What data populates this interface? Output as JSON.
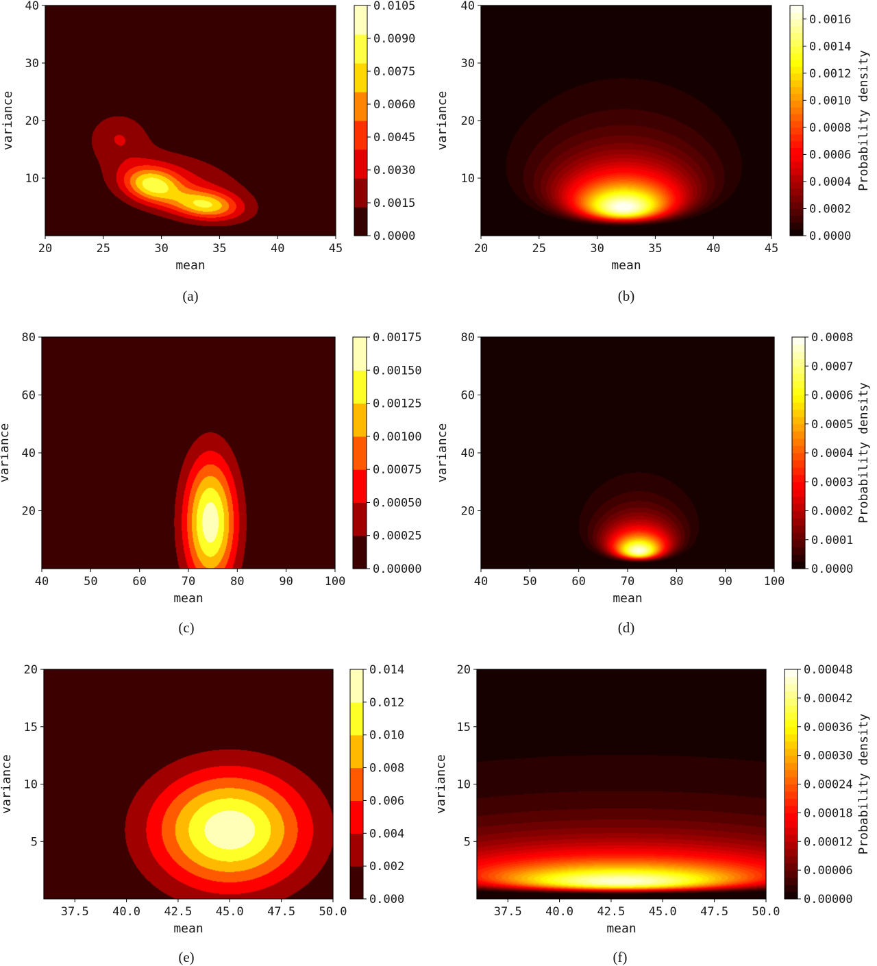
{
  "chart_data": [
    {
      "panel": "a",
      "caption": "(a)",
      "type": "heatmap",
      "style": "filled",
      "xlabel": "mean",
      "ylabel": "variance",
      "colorbar_label": "",
      "xlim": [
        20,
        45
      ],
      "ylim": [
        0,
        40
      ],
      "x_ticks": [
        "20",
        "25",
        "30",
        "35",
        "40",
        "45"
      ],
      "y_ticks": [
        "10",
        "20",
        "30",
        "40"
      ],
      "colorbar_ticks": [
        "0.0000",
        "0.0015",
        "0.0030",
        "0.0045",
        "0.0060",
        "0.0075",
        "0.0090",
        "0.0105"
      ],
      "level_max": 0.0105,
      "n_levels": 8,
      "peaks": [
        {
          "mean": 29.2,
          "variance": 8.8,
          "sx": 1.7,
          "sy": 2.1,
          "rho": -0.2,
          "amp": 0.0065
        },
        {
          "mean": 33.8,
          "variance": 5.3,
          "sx": 2.0,
          "sy": 1.7,
          "rho": -0.2,
          "amp": 0.0062
        },
        {
          "mean": 26.3,
          "variance": 17.5,
          "sx": 1.8,
          "sy": 3.0,
          "rho": 0.0,
          "amp": 0.0022
        },
        {
          "mean": 31.5,
          "variance": 9.0,
          "sx": 4.5,
          "sy": 4.5,
          "rho": -0.4,
          "amp": 0.0028
        }
      ]
    },
    {
      "panel": "b",
      "caption": "(b)",
      "type": "heatmap",
      "style": "smooth",
      "xlabel": "mean",
      "ylabel": "variance",
      "colorbar_label": "Probability density",
      "xlim": [
        20,
        45
      ],
      "ylim": [
        0,
        40
      ],
      "x_ticks": [
        "20",
        "25",
        "30",
        "35",
        "40",
        "45"
      ],
      "y_ticks": [
        "10",
        "20",
        "30",
        "40"
      ],
      "colorbar_ticks": [
        "0.0000",
        "0.0002",
        "0.0004",
        "0.0006",
        "0.0008",
        "0.0010",
        "0.0012",
        "0.0014",
        "0.0016"
      ],
      "level_max": 0.0017,
      "n_levels": 34,
      "model": {
        "mu0": 32.3,
        "kappa": 0.55,
        "alpha": 2.5,
        "beta": 20,
        "peak": 0.0017
      }
    },
    {
      "panel": "c",
      "caption": "(c)",
      "type": "heatmap",
      "style": "filled",
      "xlabel": "mean",
      "ylabel": "variance",
      "colorbar_label": "",
      "xlim": [
        40,
        100
      ],
      "ylim": [
        0,
        80
      ],
      "x_ticks": [
        "40",
        "50",
        "60",
        "70",
        "80",
        "90",
        "100"
      ],
      "y_ticks": [
        "20",
        "40",
        "60",
        "80"
      ],
      "colorbar_ticks": [
        "0.00000",
        "0.00025",
        "0.00050",
        "0.00075",
        "0.00100",
        "0.00125",
        "0.00150",
        "0.00175"
      ],
      "level_max": 0.00175,
      "n_levels": 7,
      "peaks": [
        {
          "mean": 74.5,
          "variance": 16,
          "sx": 3.8,
          "sy": 16,
          "rho": 0.0,
          "amp": 0.00165
        }
      ]
    },
    {
      "panel": "d",
      "caption": "(d)",
      "type": "heatmap",
      "style": "smooth",
      "xlabel": "mean",
      "ylabel": "variance",
      "colorbar_label": "Probability density",
      "xlim": [
        40,
        100
      ],
      "ylim": [
        0,
        80
      ],
      "x_ticks": [
        "40",
        "50",
        "60",
        "70",
        "80",
        "90",
        "100"
      ],
      "y_ticks": [
        "20",
        "40",
        "60",
        "80"
      ],
      "colorbar_ticks": [
        "0.0000",
        "0.0001",
        "0.0002",
        "0.0003",
        "0.0004",
        "0.0005",
        "0.0006",
        "0.0007",
        "0.0008"
      ],
      "level_max": 0.0008,
      "n_levels": 32,
      "model": {
        "mu0": 72.3,
        "kappa": 0.45,
        "alpha": 2.5,
        "beta": 25,
        "peak": 0.00078
      }
    },
    {
      "panel": "e",
      "caption": "(e)",
      "type": "heatmap",
      "style": "filled",
      "xlabel": "mean",
      "ylabel": "variance",
      "colorbar_label": "",
      "xlim": [
        36,
        50
      ],
      "ylim": [
        0,
        20
      ],
      "x_ticks": [
        "37.5",
        "40.0",
        "42.5",
        "45.0",
        "47.5",
        "50.0"
      ],
      "y_ticks": [
        "5",
        "10",
        "15",
        "20"
      ],
      "colorbar_ticks": [
        "0.000",
        "0.002",
        "0.004",
        "0.006",
        "0.008",
        "0.010",
        "0.012",
        "0.014"
      ],
      "level_max": 0.014,
      "n_levels": 7,
      "peaks": [
        {
          "mean": 45.0,
          "variance": 6.0,
          "sx": 2.6,
          "sy": 3.6,
          "rho": 0.0,
          "amp": 0.0134
        }
      ]
    },
    {
      "panel": "f",
      "caption": "(f)",
      "type": "heatmap",
      "style": "smooth",
      "xlabel": "mean",
      "ylabel": "variance",
      "colorbar_label": "Probability density",
      "xlim": [
        36,
        50
      ],
      "ylim": [
        0,
        20
      ],
      "x_ticks": [
        "37.5",
        "40.0",
        "42.5",
        "45.0",
        "47.5",
        "50.0"
      ],
      "y_ticks": [
        "5",
        "10",
        "15",
        "20"
      ],
      "colorbar_ticks": [
        "0.00000",
        "0.00006",
        "0.00012",
        "0.00018",
        "0.00024",
        "0.00030",
        "0.00036",
        "0.00042",
        "0.00048"
      ],
      "level_max": 0.00048,
      "n_levels": 32,
      "model": {
        "mu0": 43.0,
        "kappa": 0.06,
        "alpha": 1.3,
        "beta": 4.3,
        "peak": 0.00046
      }
    }
  ]
}
